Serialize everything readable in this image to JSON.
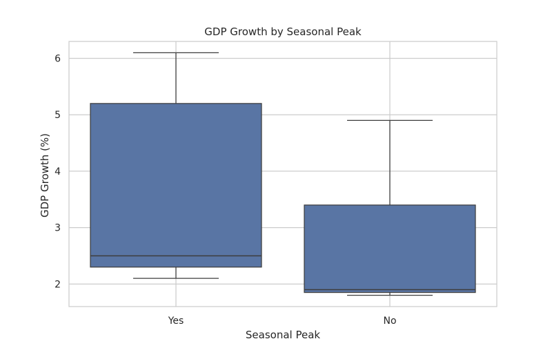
{
  "chart_data": {
    "type": "box",
    "title": "GDP Growth by Seasonal Peak",
    "xlabel": "Seasonal Peak",
    "ylabel": "GDP Growth (%)",
    "ylim": [
      1.6,
      6.3
    ],
    "yticks": [
      2,
      3,
      4,
      5,
      6
    ],
    "grid": true,
    "categories": [
      "Yes",
      "No"
    ],
    "boxes": [
      {
        "category": "Yes",
        "whisker_low": 2.1,
        "q1": 2.3,
        "median": 2.5,
        "q3": 5.2,
        "whisker_high": 6.1
      },
      {
        "category": "No",
        "whisker_low": 1.8,
        "q1": 1.85,
        "median": 1.9,
        "q3": 3.4,
        "whisker_high": 4.9
      }
    ],
    "colors": {
      "box_fill": "#5975a4",
      "box_edge": "#3d3d3d",
      "grid": "#cccccc",
      "frame": "#cccccc"
    }
  }
}
